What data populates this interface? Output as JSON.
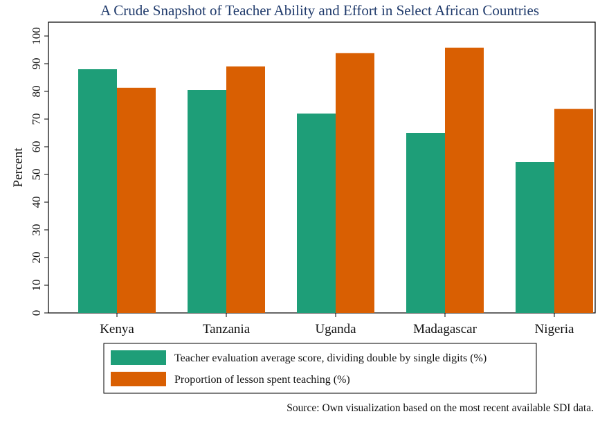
{
  "chart_data": {
    "type": "bar",
    "title": "A Crude Snapshot of Teacher Ability and Effort in Select African Countries",
    "xlabel": "",
    "ylabel": "Percent",
    "ylim": [
      0,
      105
    ],
    "yticks": [
      0,
      10,
      20,
      30,
      40,
      50,
      60,
      70,
      80,
      90,
      100
    ],
    "categories": [
      "Kenya",
      "Tanzania",
      "Uganda",
      "Madagascar",
      "Nigeria"
    ],
    "series": [
      {
        "name": "Teacher evaluation average score, dividing double by single digits (%)",
        "color": "#1e9e78",
        "values": [
          88,
          80.5,
          72,
          65,
          54.5
        ]
      },
      {
        "name": "Proportion of lesson spent teaching (%)",
        "color": "#d95f02",
        "values": [
          81.3,
          89,
          93.8,
          95.8,
          73.7
        ]
      }
    ],
    "legend_position": "bottom",
    "source": "Source: Own visualization based on the most recent available SDI data."
  }
}
